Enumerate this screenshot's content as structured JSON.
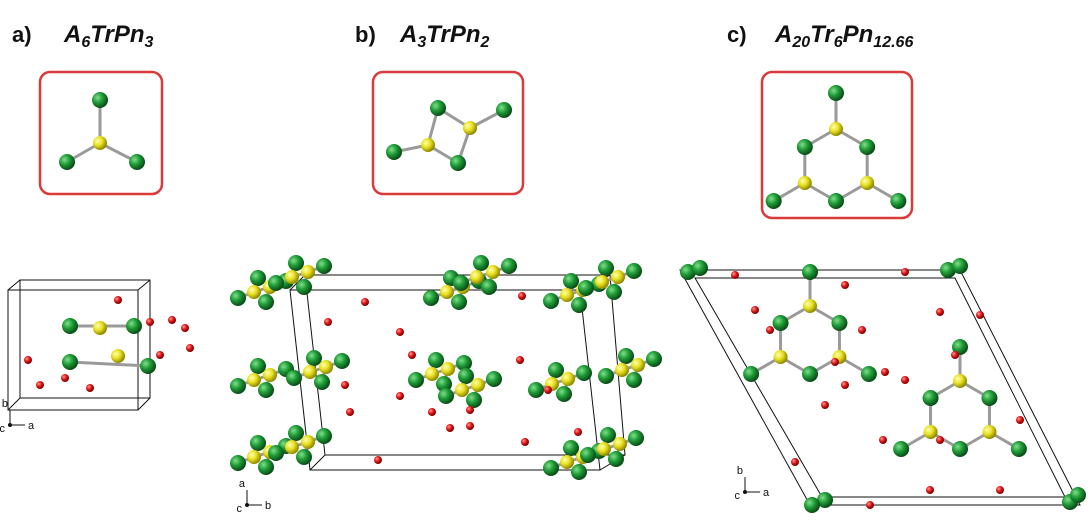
{
  "panels": [
    {
      "label": "a)",
      "formula": [
        {
          "text": "A",
          "sub": false
        },
        {
          "text": "6",
          "sub": true
        },
        {
          "text": "TrPn",
          "sub": false
        },
        {
          "text": "3",
          "sub": true
        }
      ],
      "axes": [
        "b",
        "c",
        "a"
      ]
    },
    {
      "label": "b)",
      "formula": [
        {
          "text": "A",
          "sub": false
        },
        {
          "text": "3",
          "sub": true
        },
        {
          "text": "TrPn",
          "sub": false
        },
        {
          "text": "2",
          "sub": true
        }
      ],
      "axes": [
        "a",
        "c",
        "b"
      ]
    },
    {
      "label": "c)",
      "formula": [
        {
          "text": "A",
          "sub": false
        },
        {
          "text": "20",
          "sub": true
        },
        {
          "text": "Tr",
          "sub": false
        },
        {
          "text": "6",
          "sub": true
        },
        {
          "text": "Pn",
          "sub": false
        },
        {
          "text": "12.66",
          "sub": true
        }
      ],
      "axes": [
        "b",
        "c",
        "a"
      ]
    }
  ]
}
